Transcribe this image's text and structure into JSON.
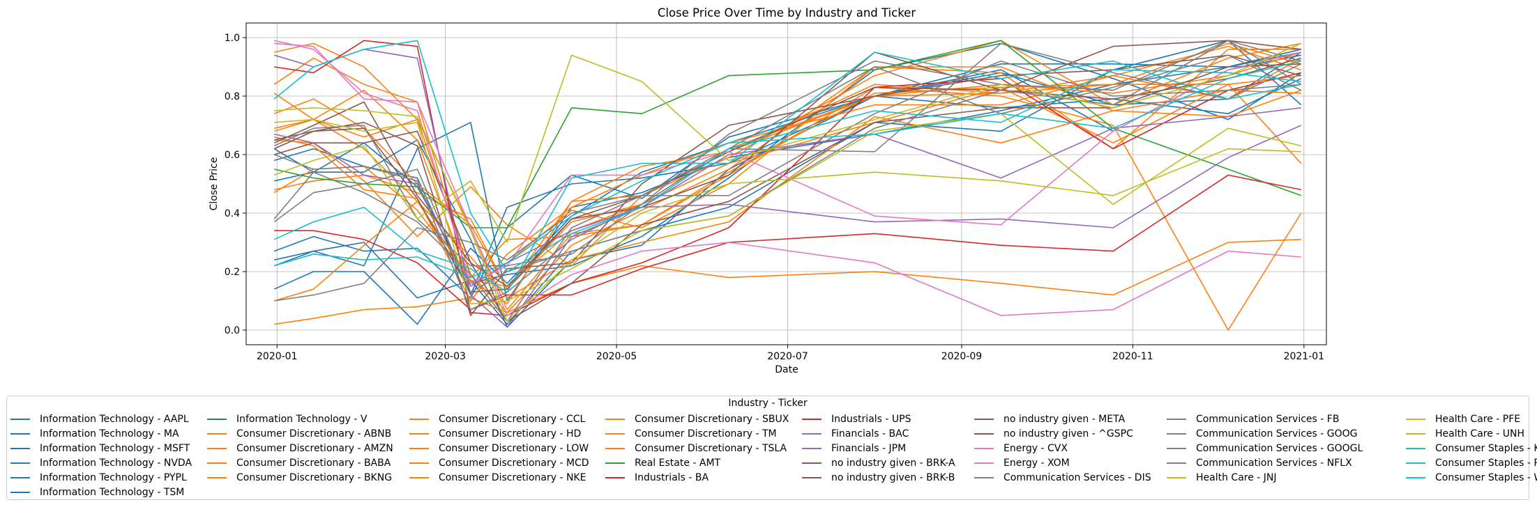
{
  "chart_data": {
    "type": "line",
    "title": "Close Price Over Time by Industry and Ticker",
    "xlabel": "Date",
    "ylabel": "Close Price",
    "xlim": [
      "2019-12-21",
      "2021-01-09"
    ],
    "ylim": [
      -0.05,
      1.05
    ],
    "x_ticks": [
      "2020-01",
      "2020-03",
      "2020-05",
      "2020-07",
      "2020-09",
      "2020-11",
      "2021-01"
    ],
    "y_ticks": [
      "0.0",
      "0.2",
      "0.4",
      "0.6",
      "0.8",
      "1.0"
    ],
    "grid": true,
    "legend_title": "Industry - Ticker",
    "legend_position": "bottom",
    "colors": {
      "Information Technology": "#1f77b4",
      "Consumer Discretionary": "#ff7f0e",
      "Real Estate": "#2ca02c",
      "Industrials": "#d62728",
      "Financials": "#9467bd",
      "no industry given": "#8c564b",
      "Energy": "#e377c2",
      "Communication Services": "#7f7f7f",
      "Health Care": "#bcbd22",
      "Consumer Staples": "#17becf"
    },
    "series": [
      {
        "name": "Information Technology - AAPL",
        "color": "#1f77b4",
        "values": [
          0.22,
          0.27,
          0.22,
          0.62,
          0.71,
          0.1,
          0.42,
          0.47,
          0.59,
          0.67,
          0.75,
          0.84,
          0.9,
          0.95
        ]
      },
      {
        "name": "Information Technology - MA",
        "color": "#1f77b4",
        "values": [
          0.58,
          0.62,
          0.56,
          0.52,
          0.12,
          0.42,
          0.5,
          0.52,
          0.57,
          0.8,
          0.88,
          0.77,
          0.79,
          0.95
        ]
      },
      {
        "name": "Information Technology - MSFT",
        "color": "#1f77b4",
        "values": [
          0.24,
          0.27,
          0.3,
          0.11,
          0.17,
          0.02,
          0.27,
          0.34,
          0.42,
          0.71,
          0.68,
          0.89,
          0.99,
          0.77
        ]
      },
      {
        "name": "Information Technology - NVDA",
        "color": "#1f77b4",
        "values": [
          0.14,
          0.2,
          0.2,
          0.02,
          0.28,
          0.16,
          0.39,
          0.54,
          0.64,
          0.8,
          0.91,
          0.91,
          0.9,
          0.96
        ]
      },
      {
        "name": "Information Technology - PYPL",
        "color": "#1f77b4",
        "values": [
          0.27,
          0.32,
          0.27,
          0.28,
          0.11,
          0.35,
          0.53,
          0.45,
          0.66,
          0.8,
          0.76,
          0.79,
          0.74,
          0.86
        ]
      },
      {
        "name": "Information Technology - TSM",
        "color": "#1f77b4",
        "values": [
          0.62,
          0.54,
          0.64,
          0.49,
          0.16,
          0.19,
          0.22,
          0.32,
          0.52,
          0.89,
          0.98,
          0.86,
          0.72,
          0.88
        ]
      },
      {
        "name": "Information Technology - V",
        "color": "#1f77b4",
        "values": [
          0.51,
          0.54,
          0.54,
          0.65,
          0.31,
          0.01,
          0.24,
          0.29,
          0.55,
          0.8,
          0.89,
          0.68,
          0.89,
          0.94
        ]
      },
      {
        "name": "Consumer Discretionary - ABNB",
        "color": "#ff7f0e",
        "values": [
          0.65,
          0.64,
          0.51,
          0.32,
          0.49,
          0.36,
          0.22,
          0.46,
          0.61,
          0.84,
          0.81,
          0.84,
          0.98,
          0.91
        ]
      },
      {
        "name": "Consumer Discretionary - AMZN",
        "color": "#ff7f0e",
        "values": [
          0.1,
          0.14,
          0.29,
          0.44,
          0.25,
          0.11,
          0.24,
          0.3,
          0.37,
          0.73,
          0.64,
          0.75,
          0.73,
          0.82
        ]
      },
      {
        "name": "Consumer Discretionary - BABA",
        "color": "#ff7f0e",
        "values": [
          0.69,
          0.72,
          0.62,
          0.44,
          0.17,
          0.09,
          0.44,
          0.46,
          0.59,
          0.87,
          0.99,
          0.77,
          0.93,
          0.98
        ]
      },
      {
        "name": "Consumer Discretionary - BKNG",
        "color": "#ff7f0e",
        "values": [
          0.74,
          0.79,
          0.69,
          0.5,
          0.36,
          0.14,
          0.37,
          0.43,
          0.57,
          0.71,
          0.83,
          0.64,
          0.84,
          0.87
        ]
      },
      {
        "name": "Consumer Discretionary - CCL",
        "color": "#ff7f0e",
        "values": [
          0.95,
          0.98,
          0.9,
          0.72,
          0.19,
          0.06,
          0.29,
          0.41,
          0.55,
          0.9,
          0.88,
          0.62,
          0.96,
          0.96
        ]
      },
      {
        "name": "Consumer Discretionary - HD",
        "color": "#ff7f0e",
        "values": [
          0.48,
          0.51,
          0.53,
          0.47,
          0.38,
          0.14,
          0.44,
          0.56,
          0.61,
          0.8,
          0.84,
          0.81,
          0.87,
          0.95
        ]
      },
      {
        "name": "Consumer Discretionary - LOW",
        "color": "#ff7f0e",
        "values": [
          0.66,
          0.63,
          0.48,
          0.45,
          0.1,
          0.26,
          0.42,
          0.53,
          0.64,
          0.77,
          0.77,
          0.87,
          0.97,
          0.89
        ]
      },
      {
        "name": "Consumer Discretionary - MCD",
        "color": "#ff7f0e",
        "values": [
          0.84,
          0.93,
          0.84,
          0.78,
          0.18,
          0.31,
          0.32,
          0.36,
          0.54,
          0.81,
          0.83,
          0.84,
          0.84,
          0.57
        ]
      },
      {
        "name": "Consumer Discretionary - NKE",
        "color": "#ff7f0e",
        "values": [
          0.02,
          0.04,
          0.07,
          0.08,
          0.11,
          0.06,
          0.16,
          0.22,
          0.18,
          0.2,
          0.16,
          0.12,
          0.3,
          0.31
        ]
      },
      {
        "name": "Consumer Discretionary - SBUX",
        "color": "#ff7f0e",
        "values": [
          0.81,
          0.72,
          0.82,
          0.65,
          0.15,
          0.23,
          0.41,
          0.35,
          0.5,
          0.9,
          0.9,
          0.75,
          0.82,
          0.81
        ]
      },
      {
        "name": "Consumer Discretionary - TM",
        "color": "#ff7f0e",
        "values": [
          0.47,
          0.55,
          0.56,
          0.41,
          0.17,
          0.15,
          0.34,
          0.43,
          0.62,
          0.8,
          0.81,
          0.87,
          0.79,
          0.93
        ]
      },
      {
        "name": "Consumer Discretionary - TSLA",
        "color": "#ff7f0e",
        "values": [
          0.68,
          0.72,
          0.66,
          0.72,
          0.35,
          0.07,
          0.33,
          0.36,
          0.53,
          0.83,
          0.8,
          0.7,
          0.0,
          0.4
        ]
      },
      {
        "name": "Real Estate - AMT",
        "color": "#2ca02c",
        "values": [
          0.55,
          0.52,
          0.5,
          0.49,
          0.35,
          0.35,
          0.76,
          0.74,
          0.87,
          0.89,
          0.99,
          0.69,
          0.55,
          0.46
        ]
      },
      {
        "name": "Industrials - BA",
        "color": "#d62728",
        "values": [
          0.34,
          0.34,
          0.31,
          0.23,
          0.07,
          0.12,
          0.12,
          0.21,
          0.3,
          0.33,
          0.29,
          0.27,
          0.53,
          0.48
        ]
      },
      {
        "name": "Industrials - UPS",
        "color": "#d62728",
        "values": [
          0.9,
          0.88,
          0.99,
          0.97,
          0.06,
          0.05,
          0.16,
          0.23,
          0.35,
          0.83,
          0.86,
          0.62,
          0.82,
          0.88
        ]
      },
      {
        "name": "Financials - BAC",
        "color": "#9467bd",
        "values": [
          0.67,
          0.64,
          0.53,
          0.5,
          0.15,
          0.23,
          0.34,
          0.42,
          0.43,
          0.37,
          0.38,
          0.35,
          0.59,
          0.7
        ]
      },
      {
        "name": "Financials - JPM",
        "color": "#9467bd",
        "values": [
          0.94,
          0.9,
          0.96,
          0.93,
          0.12,
          0.01,
          0.32,
          0.42,
          0.6,
          0.67,
          0.52,
          0.69,
          0.73,
          0.76
        ]
      },
      {
        "name": "no industry given - BRK-A",
        "color": "#8c564b",
        "values": [
          0.6,
          0.64,
          0.64,
          0.68,
          0.23,
          0.03,
          0.16,
          0.36,
          0.44,
          0.71,
          0.76,
          0.76,
          0.9,
          0.91
        ]
      },
      {
        "name": "no industry given - BRK-B",
        "color": "#8c564b",
        "values": [
          0.65,
          0.68,
          0.71,
          0.63,
          0.05,
          0.21,
          0.23,
          0.5,
          0.7,
          0.8,
          0.87,
          0.89,
          0.94,
          0.87
        ]
      },
      {
        "name": "no industry given - META",
        "color": "#8c564b",
        "values": [
          0.64,
          0.7,
          0.78,
          0.46,
          0.23,
          0.15,
          0.38,
          0.42,
          0.53,
          0.95,
          0.82,
          0.79,
          0.86,
          0.93
        ]
      },
      {
        "name": "no industry given - ^GSPC",
        "color": "#8c564b",
        "values": [
          0.62,
          0.68,
          0.69,
          0.45,
          0.13,
          0.14,
          0.38,
          0.46,
          0.61,
          0.83,
          0.82,
          0.97,
          0.99,
          0.96
        ]
      },
      {
        "name": "Energy - CVX",
        "color": "#e377c2",
        "values": [
          0.98,
          0.97,
          0.79,
          0.78,
          0.35,
          0.05,
          0.19,
          0.27,
          0.3,
          0.23,
          0.05,
          0.07,
          0.27,
          0.25
        ]
      },
      {
        "name": "Energy - XOM",
        "color": "#e377c2",
        "values": [
          0.99,
          0.96,
          0.81,
          0.75,
          0.16,
          0.22,
          0.53,
          0.53,
          0.61,
          0.39,
          0.36,
          0.68,
          0.89,
          0.95
        ]
      },
      {
        "name": "Communication Services - DIS",
        "color": "#7f7f7f",
        "values": [
          0.37,
          0.47,
          0.5,
          0.55,
          0.13,
          0.2,
          0.27,
          0.34,
          0.39,
          0.69,
          0.82,
          0.77,
          0.99,
          0.92
        ]
      },
      {
        "name": "Communication Services - FB",
        "color": "#7f7f7f",
        "values": [
          0.6,
          0.55,
          0.56,
          0.51,
          0.07,
          0.13,
          0.31,
          0.43,
          0.67,
          0.92,
          0.84,
          0.82,
          0.99,
          0.84
        ]
      },
      {
        "name": "Communication Services - GOOG",
        "color": "#7f7f7f",
        "values": [
          0.1,
          0.12,
          0.16,
          0.35,
          0.3,
          0.24,
          0.4,
          0.46,
          0.46,
          0.74,
          0.92,
          0.8,
          0.82,
          0.84
        ]
      },
      {
        "name": "Communication Services - GOOGL",
        "color": "#7f7f7f",
        "values": [
          0.38,
          0.54,
          0.47,
          0.37,
          0.19,
          0.03,
          0.35,
          0.46,
          0.62,
          0.61,
          0.98,
          0.88,
          0.79,
          0.91
        ]
      },
      {
        "name": "Communication Services - NFLX",
        "color": "#7f7f7f",
        "values": [
          0.63,
          0.69,
          0.7,
          0.38,
          0.22,
          0.22,
          0.26,
          0.43,
          0.62,
          0.9,
          0.74,
          0.83,
          0.94,
          0.82
        ]
      },
      {
        "name": "Health Care - JNJ",
        "color": "#bcbd22",
        "values": [
          0.71,
          0.72,
          0.68,
          0.71,
          0.09,
          0.1,
          0.21,
          0.34,
          0.39,
          0.68,
          0.74,
          0.43,
          0.69,
          0.63
        ]
      },
      {
        "name": "Health Care - PFE",
        "color": "#bcbd22",
        "values": [
          0.75,
          0.76,
          0.75,
          0.73,
          0.34,
          0.03,
          0.24,
          0.4,
          0.5,
          0.54,
          0.51,
          0.46,
          0.62,
          0.61
        ]
      },
      {
        "name": "Health Care - UNH",
        "color": "#bcbd22",
        "values": [
          0.53,
          0.58,
          0.63,
          0.38,
          0.51,
          0.3,
          0.94,
          0.85,
          0.58,
          0.72,
          0.84,
          0.76,
          0.87,
          0.98
        ]
      },
      {
        "name": "Consumer Staples - KO",
        "color": "#17becf",
        "values": [
          0.31,
          0.37,
          0.42,
          0.27,
          0.21,
          0.13,
          0.52,
          0.57,
          0.57,
          0.95,
          0.86,
          0.92,
          0.79,
          0.84
        ]
      },
      {
        "name": "Consumer Staples - PG",
        "color": "#17becf",
        "values": [
          0.22,
          0.26,
          0.24,
          0.25,
          0.18,
          0.23,
          0.39,
          0.51,
          0.64,
          0.67,
          0.74,
          0.69,
          0.86,
          0.92
        ]
      },
      {
        "name": "Consumer Staples - WMT",
        "color": "#17becf",
        "values": [
          0.79,
          0.9,
          0.96,
          0.99,
          0.4,
          0.2,
          0.33,
          0.42,
          0.62,
          0.75,
          0.71,
          0.89,
          0.88,
          0.85
        ]
      }
    ],
    "x": [
      "2019-12-31",
      "2020-01-14",
      "2020-02-01",
      "2020-02-20",
      "2020-03-10",
      "2020-03-23",
      "2020-04-15",
      "2020-05-10",
      "2020-06-10",
      "2020-08-01",
      "2020-09-15",
      "2020-10-25",
      "2020-12-05",
      "2020-12-31"
    ],
    "legend_columns": [
      [
        "Information Technology - AAPL",
        "Information Technology - MA",
        "Information Technology - MSFT",
        "Information Technology - NVDA",
        "Information Technology - PYPL",
        "Information Technology - TSM"
      ],
      [
        "Information Technology - V",
        "Consumer Discretionary - ABNB",
        "Consumer Discretionary - AMZN",
        "Consumer Discretionary - BABA",
        "Consumer Discretionary - BKNG"
      ],
      [
        "Consumer Discretionary - CCL",
        "Consumer Discretionary - HD",
        "Consumer Discretionary - LOW",
        "Consumer Discretionary - MCD",
        "Consumer Discretionary - NKE"
      ],
      [
        "Consumer Discretionary - SBUX",
        "Consumer Discretionary - TM",
        "Consumer Discretionary - TSLA",
        "Real Estate - AMT",
        "Industrials - BA"
      ],
      [
        "Industrials - UPS",
        "Financials - BAC",
        "Financials - JPM",
        "no industry given - BRK-A",
        "no industry given - BRK-B"
      ],
      [
        "no industry given - META",
        "no industry given - ^GSPC",
        "Energy - CVX",
        "Energy - XOM",
        "Communication Services - DIS"
      ],
      [
        "Communication Services - FB",
        "Communication Services - GOOG",
        "Communication Services - GOOGL",
        "Communication Services - NFLX",
        "Health Care - JNJ"
      ],
      [
        "Health Care - PFE",
        "Health Care - UNH",
        "Consumer Staples - KO",
        "Consumer Staples - PG",
        "Consumer Staples - WMT"
      ]
    ]
  }
}
